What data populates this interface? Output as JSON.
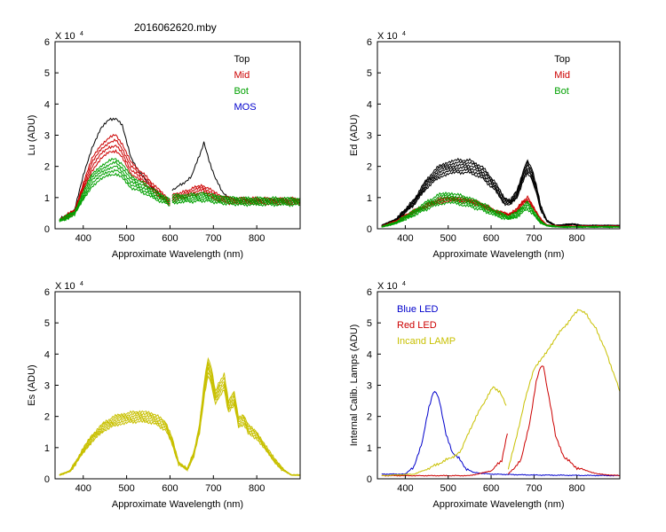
{
  "title": "2016062620.mby",
  "chart_data": [
    {
      "id": "lu",
      "type": "line",
      "ylabel": "Lu (ADU)",
      "xlabel": "Approximate Wavelength (nm)",
      "xlim": [
        335,
        900
      ],
      "ylim": [
        0,
        6
      ],
      "y_multiplier": "X 10⁴",
      "xticks": [
        400,
        500,
        600,
        700,
        800
      ],
      "yticks": [
        0,
        1,
        2,
        3,
        4,
        5,
        6
      ],
      "legend": [
        "Top",
        "Mid",
        "Bot",
        "MOS"
      ],
      "series": [
        {
          "name": "Top",
          "color": "#000000",
          "copies": 1,
          "spread": 0,
          "points": [
            [
              345,
              0.3
            ],
            [
              380,
              0.6
            ],
            [
              400,
              1.7
            ],
            [
              420,
              2.6
            ],
            [
              440,
              3.2
            ],
            [
              460,
              3.5
            ],
            [
              475,
              3.55
            ],
            [
              490,
              3.3
            ],
            [
              510,
              2.3
            ],
            [
              530,
              1.8
            ],
            [
              560,
              1.3
            ],
            [
              600,
              0.8
            ]
          ],
          "points2": [
            [
              605,
              1.25
            ],
            [
              630,
              1.45
            ],
            [
              650,
              1.7
            ],
            [
              668,
              2.35
            ],
            [
              678,
              2.75
            ],
            [
              690,
              2.2
            ],
            [
              705,
              1.6
            ],
            [
              720,
              1.2
            ],
            [
              740,
              0.95
            ],
            [
              780,
              0.9
            ],
            [
              900,
              0.9
            ]
          ]
        },
        {
          "name": "Mid",
          "color": "#cc0000",
          "copies": 4,
          "spread": 0.09,
          "points": [
            [
              345,
              0.27
            ],
            [
              380,
              0.55
            ],
            [
              400,
              1.35
            ],
            [
              420,
              2.05
            ],
            [
              440,
              2.45
            ],
            [
              460,
              2.7
            ],
            [
              475,
              2.75
            ],
            [
              490,
              2.5
            ],
            [
              510,
              1.95
            ],
            [
              540,
              1.6
            ],
            [
              570,
              1.2
            ],
            [
              600,
              0.85
            ]
          ],
          "points2": [
            [
              605,
              1.0
            ],
            [
              630,
              1.08
            ],
            [
              655,
              1.2
            ],
            [
              675,
              1.28
            ],
            [
              690,
              1.18
            ],
            [
              710,
              1.0
            ],
            [
              740,
              0.9
            ],
            [
              900,
              0.88
            ]
          ]
        },
        {
          "name": "Bot",
          "color": "#00a000",
          "copies": 5,
          "spread": 0.12,
          "points": [
            [
              345,
              0.25
            ],
            [
              380,
              0.5
            ],
            [
              400,
              1.05
            ],
            [
              420,
              1.55
            ],
            [
              440,
              1.8
            ],
            [
              460,
              1.95
            ],
            [
              475,
              2.0
            ],
            [
              490,
              1.85
            ],
            [
              510,
              1.5
            ],
            [
              540,
              1.3
            ],
            [
              570,
              1.05
            ],
            [
              600,
              0.85
            ]
          ],
          "points2": [
            [
              605,
              0.95
            ],
            [
              640,
              0.98
            ],
            [
              680,
              1.02
            ],
            [
              720,
              0.92
            ],
            [
              760,
              0.88
            ],
            [
              900,
              0.87
            ]
          ]
        },
        {
          "name": "MOS",
          "color": "#0000cc",
          "copies": 0,
          "spread": 0,
          "points": [],
          "points2": []
        }
      ]
    },
    {
      "id": "ed",
      "type": "line",
      "ylabel": "Ed  (ADU)",
      "xlabel": "Approximate Wavelength (nm)",
      "xlim": [
        335,
        900
      ],
      "ylim": [
        0,
        6
      ],
      "y_multiplier": "X 10⁴",
      "xticks": [
        400,
        500,
        600,
        700,
        800
      ],
      "yticks": [
        0,
        1,
        2,
        3,
        4,
        5,
        6
      ],
      "legend": [
        "Top",
        "Mid",
        "Bot"
      ],
      "series": [
        {
          "name": "Top",
          "color": "#000000",
          "copies": 6,
          "spread": 0.1,
          "points": [
            [
              345,
              0.1
            ],
            [
              380,
              0.3
            ],
            [
              420,
              0.85
            ],
            [
              450,
              1.45
            ],
            [
              480,
              1.85
            ],
            [
              500,
              1.95
            ],
            [
              520,
              2.0
            ],
            [
              550,
              2.0
            ],
            [
              580,
              1.8
            ],
            [
              610,
              1.35
            ],
            [
              630,
              0.9
            ],
            [
              645,
              0.85
            ],
            [
              660,
              1.1
            ],
            [
              675,
              1.7
            ],
            [
              685,
              2.0
            ],
            [
              695,
              1.75
            ],
            [
              705,
              1.3
            ],
            [
              715,
              0.7
            ],
            [
              730,
              0.25
            ],
            [
              750,
              0.1
            ],
            [
              790,
              0.15
            ],
            [
              810,
              0.1
            ],
            [
              900,
              0.1
            ]
          ]
        },
        {
          "name": "Mid",
          "color": "#cc0000",
          "copies": 4,
          "spread": 0.06,
          "points": [
            [
              345,
              0.08
            ],
            [
              380,
              0.25
            ],
            [
              420,
              0.55
            ],
            [
              450,
              0.75
            ],
            [
              480,
              0.9
            ],
            [
              500,
              0.95
            ],
            [
              520,
              0.95
            ],
            [
              550,
              0.9
            ],
            [
              580,
              0.75
            ],
            [
              610,
              0.55
            ],
            [
              640,
              0.45
            ],
            [
              660,
              0.6
            ],
            [
              675,
              0.85
            ],
            [
              685,
              0.95
            ],
            [
              700,
              0.65
            ],
            [
              715,
              0.3
            ],
            [
              730,
              0.12
            ],
            [
              760,
              0.08
            ],
            [
              900,
              0.08
            ]
          ]
        },
        {
          "name": "Bot",
          "color": "#00a000",
          "copies": 5,
          "spread": 0.16,
          "points": [
            [
              345,
              0.06
            ],
            [
              380,
              0.2
            ],
            [
              420,
              0.5
            ],
            [
              450,
              0.75
            ],
            [
              480,
              0.95
            ],
            [
              500,
              1.0
            ],
            [
              520,
              0.95
            ],
            [
              550,
              0.85
            ],
            [
              580,
              0.7
            ],
            [
              610,
              0.5
            ],
            [
              640,
              0.35
            ],
            [
              660,
              0.45
            ],
            [
              675,
              0.65
            ],
            [
              685,
              0.75
            ],
            [
              700,
              0.5
            ],
            [
              715,
              0.22
            ],
            [
              730,
              0.1
            ],
            [
              760,
              0.06
            ],
            [
              900,
              0.06
            ]
          ]
        }
      ]
    },
    {
      "id": "es",
      "type": "line",
      "ylabel": "Es  (ADU)",
      "xlabel": "Approximate Wavelength (nm)",
      "xlim": [
        335,
        900
      ],
      "ylim": [
        0,
        6
      ],
      "y_multiplier": "X 10⁴",
      "xticks": [
        400,
        500,
        600,
        700,
        800
      ],
      "yticks": [
        0,
        1,
        2,
        3,
        4,
        5,
        6
      ],
      "legend": [],
      "series": [
        {
          "name": "Es",
          "color": "#c8c000",
          "copies": 6,
          "spread": 0.08,
          "points": [
            [
              345,
              0.12
            ],
            [
              370,
              0.25
            ],
            [
              400,
              0.9
            ],
            [
              420,
              1.3
            ],
            [
              450,
              1.7
            ],
            [
              480,
              1.9
            ],
            [
              500,
              1.95
            ],
            [
              530,
              2.0
            ],
            [
              560,
              1.95
            ],
            [
              590,
              1.7
            ],
            [
              605,
              1.2
            ],
            [
              620,
              0.5
            ],
            [
              640,
              0.3
            ],
            [
              655,
              0.8
            ],
            [
              668,
              1.6
            ],
            [
              680,
              3.0
            ],
            [
              688,
              3.6
            ],
            [
              695,
              3.3
            ],
            [
              705,
              2.6
            ],
            [
              715,
              2.9
            ],
            [
              725,
              3.1
            ],
            [
              735,
              2.3
            ],
            [
              748,
              2.6
            ],
            [
              758,
              1.8
            ],
            [
              770,
              1.9
            ],
            [
              780,
              1.6
            ],
            [
              800,
              1.4
            ],
            [
              820,
              1.0
            ],
            [
              840,
              0.6
            ],
            [
              860,
              0.3
            ],
            [
              880,
              0.12
            ],
            [
              900,
              0.12
            ]
          ]
        }
      ]
    },
    {
      "id": "calib",
      "type": "line",
      "ylabel": "Internal Calib. Lamps (ADU)",
      "xlabel": "Approximate Wavelength (nm)",
      "xlim": [
        335,
        900
      ],
      "ylim": [
        0,
        6
      ],
      "y_multiplier": "X 10⁴",
      "xticks": [
        400,
        500,
        600,
        700,
        800
      ],
      "yticks": [
        0,
        1,
        2,
        3,
        4,
        5,
        6
      ],
      "legend": [
        "Blue LED",
        "Red LED",
        "Incand LAMP"
      ],
      "series": [
        {
          "name": "Blue LED",
          "color": "#0000cc",
          "copies": 1,
          "spread": 0,
          "points": [
            [
              345,
              0.15
            ],
            [
              400,
              0.15
            ],
            [
              420,
              0.4
            ],
            [
              440,
              1.2
            ],
            [
              455,
              2.3
            ],
            [
              465,
              2.75
            ],
            [
              472,
              2.8
            ],
            [
              480,
              2.5
            ],
            [
              495,
              1.4
            ],
            [
              510,
              0.85
            ],
            [
              525,
              0.65
            ],
            [
              540,
              0.35
            ],
            [
              560,
              0.2
            ],
            [
              600,
              0.15
            ],
            [
              700,
              0.12
            ],
            [
              900,
              0.1
            ]
          ]
        },
        {
          "name": "Red LED",
          "color": "#cc0000",
          "copies": 1,
          "spread": 0,
          "points": [
            [
              345,
              0.1
            ],
            [
              550,
              0.1
            ],
            [
              600,
              0.25
            ],
            [
              625,
              0.6
            ],
            [
              638,
              1.45
            ]
          ],
          "points2": [
            [
              640,
              0.15
            ],
            [
              670,
              0.6
            ],
            [
              690,
              1.8
            ],
            [
              705,
              3.1
            ],
            [
              715,
              3.6
            ],
            [
              722,
              3.6
            ],
            [
              735,
              2.6
            ],
            [
              750,
              1.4
            ],
            [
              770,
              0.7
            ],
            [
              800,
              0.35
            ],
            [
              850,
              0.15
            ],
            [
              900,
              0.1
            ]
          ]
        },
        {
          "name": "Incand LAMP",
          "color": "#c8c000",
          "copies": 1,
          "spread": 0,
          "points": [
            [
              345,
              0.1
            ],
            [
              420,
              0.15
            ],
            [
              450,
              0.3
            ],
            [
              480,
              0.5
            ],
            [
              510,
              0.7
            ],
            [
              530,
              0.9
            ],
            [
              545,
              1.4
            ],
            [
              565,
              2.0
            ],
            [
              590,
              2.6
            ],
            [
              605,
              2.95
            ],
            [
              620,
              2.8
            ],
            [
              635,
              2.35
            ]
          ],
          "points2": [
            [
              640,
              0.3
            ],
            [
              660,
              1.4
            ],
            [
              680,
              2.6
            ],
            [
              700,
              3.5
            ],
            [
              720,
              3.9
            ],
            [
              740,
              4.3
            ],
            [
              760,
              4.7
            ],
            [
              790,
              5.2
            ],
            [
              805,
              5.45
            ],
            [
              820,
              5.3
            ],
            [
              845,
              4.8
            ],
            [
              870,
              4.0
            ],
            [
              885,
              3.4
            ],
            [
              900,
              2.8
            ]
          ]
        }
      ]
    }
  ]
}
